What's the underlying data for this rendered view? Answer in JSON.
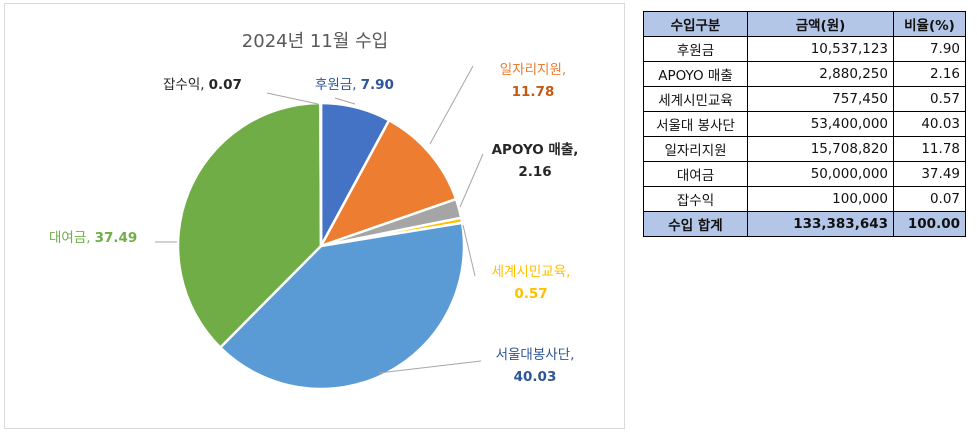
{
  "chart_data": {
    "type": "pie",
    "title": "2024년 11월 수입",
    "start_angle_deg": 0,
    "direction": "clockwise",
    "slices": [
      {
        "label": "후원금",
        "value": 7.9,
        "color": "#4472c4",
        "label_text": "후원금,",
        "value_text": "7.90",
        "label_color": "#2f5597",
        "value_color": "#2f5597"
      },
      {
        "label": "일자리지원",
        "value": 11.78,
        "color": "#ed7d31",
        "label_text": "일자리지원,",
        "value_text": "11.78",
        "label_color": "#ed7d31",
        "value_color": "#c55a11"
      },
      {
        "label": "APOYO 매출",
        "value": 2.16,
        "color": "#a5a5a5",
        "label_text": "APOYO 매출,",
        "value_text": "2.16",
        "label_color": "#262626",
        "value_color": "#262626"
      },
      {
        "label": "세계시민교육",
        "value": 0.57,
        "color": "#ffc000",
        "label_text": "세계시민교육,",
        "value_text": "0.57",
        "label_color": "#ffc000",
        "value_color": "#ffc000"
      },
      {
        "label": "서울대봉사단",
        "value": 40.03,
        "color": "#5b9bd5",
        "label_text": "서울대봉사단,",
        "value_text": "40.03",
        "label_color": "#2f5597",
        "value_color": "#2f5597"
      },
      {
        "label": "대여금",
        "value": 37.49,
        "color": "#70ad47",
        "label_text": "대여금,",
        "value_text": "37.49",
        "label_color": "#70ad47",
        "value_color": "#70ad47"
      },
      {
        "label": "잡수익",
        "value": 0.07,
        "color": "#264478",
        "label_text": "잡수익,",
        "value_text": "0.07",
        "label_color": "#262626",
        "value_color": "#262626"
      }
    ]
  },
  "table": {
    "headers": [
      "수입구분",
      "금액(원)",
      "비율(%)"
    ],
    "rows": [
      {
        "name": "후원금",
        "amount": "10,537,123",
        "rate": "7.90"
      },
      {
        "name": "APOYO 매출",
        "amount": "2,880,250",
        "rate": "2.16"
      },
      {
        "name": "세계시민교육",
        "amount": "757,450",
        "rate": "0.57"
      },
      {
        "name": "서울대 봉사단",
        "amount": "53,400,000",
        "rate": "40.03"
      },
      {
        "name": "일자리지원",
        "amount": "15,708,820",
        "rate": "11.78"
      },
      {
        "name": "대여금",
        "amount": "50,000,000",
        "rate": "37.49"
      },
      {
        "name": "잡수익",
        "amount": "100,000",
        "rate": "0.07"
      }
    ],
    "total": {
      "name": "수입 합계",
      "amount": "133,383,643",
      "rate": "100.00"
    }
  }
}
